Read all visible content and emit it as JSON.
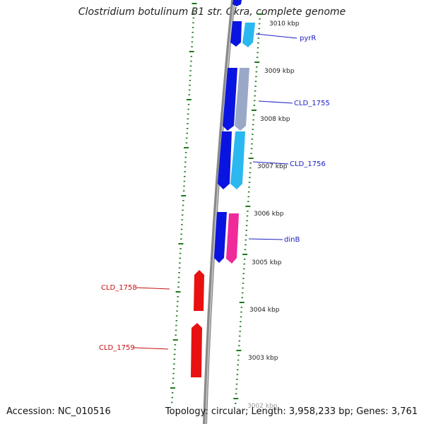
{
  "title": "Clostridium botulinum B1 str. Okra, complete genome",
  "accession_label": "Accession: NC_010516",
  "topology_label": "Topology: circular; Length: 3,958,233 bp; Genes: 3,761",
  "colors": {
    "backbone": "#8a8a8a",
    "forward_gene": "#0a14e0",
    "forward_cds": "#2bb8f0",
    "pseudo": "#9aa8c8",
    "reverse_gene": "#e81010",
    "misc": "#f02a9a",
    "tick": "#1a7a1a",
    "fwd_label": "#1a20c0",
    "rev_label": "#c81010"
  },
  "scale_ticks": [
    {
      "label": "3010 kbp"
    },
    {
      "label": "3009 kbp"
    },
    {
      "label": "3008 kbp"
    },
    {
      "label": "3007 kbp"
    },
    {
      "label": "3006 kbp"
    },
    {
      "label": "3005 kbp"
    },
    {
      "label": "3004 kbp"
    },
    {
      "label": "3003 kbp"
    },
    {
      "label": "3002 kbp"
    }
  ],
  "gene_labels": [
    {
      "name": "pyrR",
      "strand": "forward"
    },
    {
      "name": "CLD_1755",
      "strand": "forward"
    },
    {
      "name": "CLD_1756",
      "strand": "forward"
    },
    {
      "name": "dinB",
      "strand": "forward"
    },
    {
      "name": "CLD_1758",
      "strand": "reverse"
    },
    {
      "name": "CLD_1759",
      "strand": "reverse"
    }
  ]
}
